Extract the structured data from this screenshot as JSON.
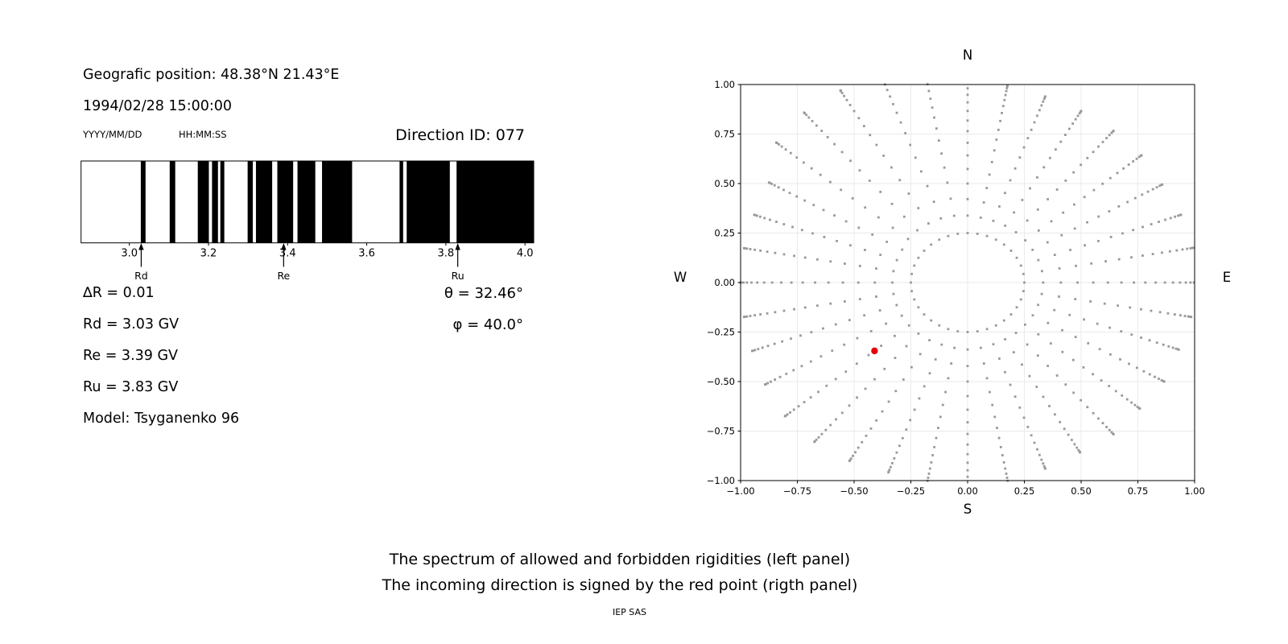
{
  "info": {
    "position": "Geografic position: 48.38°N 21.43°E",
    "datetime": "1994/02/28 15:00:00",
    "date_format": "YYYY/MM/DD",
    "time_format": "HH:MM:SS",
    "direction_id": "Direction ID: 077",
    "delta_r": "∆R = 0.01",
    "rd": "Rd = 3.03 GV",
    "re": "Re = 3.39 GV",
    "ru": "Ru = 3.83 GV",
    "model": "Model: Tsyganenko 96",
    "theta": "θ = 32.46°",
    "phi": "φ = 40.0°"
  },
  "caption": {
    "line1": "The spectrum of allowed and forbidden rigidities (left panel)",
    "line2": "The incoming direction is signed by the red point (rigth panel)",
    "footer": "IEP SAS"
  },
  "colors": {
    "allowed_band": "#000000",
    "scatter_dot": "#999999",
    "red_point": "#e8000b",
    "grid": "#e9e9e9",
    "axis": "#000000"
  },
  "chart_data": [
    {
      "type": "bar",
      "panel": "left",
      "encoding": "black = allowed rigidity, white = forbidden rigidity",
      "xlim": [
        2.878,
        4.022
      ],
      "xticks": [
        "3.0",
        "3.2",
        "3.4",
        "3.6",
        "3.8",
        "4.0"
      ],
      "xtick_values": [
        3.0,
        3.2,
        3.4,
        3.6,
        3.8,
        4.0
      ],
      "delta_r_gv": 0.01,
      "allowed_bands_gv": [
        [
          3.029,
          3.041
        ],
        [
          3.102,
          3.116
        ],
        [
          3.173,
          3.201
        ],
        [
          3.209,
          3.224
        ],
        [
          3.23,
          3.24
        ],
        [
          3.299,
          3.312
        ],
        [
          3.32,
          3.361
        ],
        [
          3.374,
          3.414
        ],
        [
          3.425,
          3.47
        ],
        [
          3.487,
          3.563
        ],
        [
          3.683,
          3.692
        ],
        [
          3.701,
          3.81
        ],
        [
          3.827,
          4.022
        ]
      ],
      "arrows": [
        {
          "label": "Rd",
          "rigidity": 3.03
        },
        {
          "label": "Re",
          "rigidity": 3.39
        },
        {
          "label": "Ru",
          "rigidity": 3.83
        }
      ]
    },
    {
      "type": "scatter",
      "panel": "right",
      "xlim": [
        -1,
        1
      ],
      "ylim": [
        -1,
        1
      ],
      "xticks": [
        "−1.00",
        "−0.75",
        "−0.50",
        "−0.25",
        "0.00",
        "0.25",
        "0.50",
        "0.75",
        "1.00"
      ],
      "xtick_values": [
        -1,
        -0.75,
        -0.5,
        -0.25,
        0,
        0.25,
        0.5,
        0.75,
        1
      ],
      "yticks": [
        "1.00",
        "0.75",
        "0.50",
        "0.25",
        "0.00",
        "−0.25",
        "−0.50",
        "−0.75",
        "−1.00"
      ],
      "ytick_values": [
        1,
        0.75,
        0.5,
        0.25,
        0,
        -0.25,
        -0.5,
        -0.75,
        -1
      ],
      "grid": true,
      "compass": {
        "top": "N",
        "bottom": "S",
        "left": "W",
        "right": "E"
      },
      "rays": {
        "count": 36,
        "angle_step_deg": 10,
        "inner_radius": 0.25,
        "dots_per_ray": 18,
        "bunch_exponent": 1.9,
        "tip_radii": [
          1.01,
          1.01,
          1.0,
          0.99,
          1.0,
          1.0,
          1.0,
          1.0,
          1.01,
          1.06,
          1.1,
          1.12,
          1.12,
          1.12,
          1.1,
          1.01,
          1.0,
          1.0,
          1.0,
          1.0,
          1.01,
          1.03,
          1.05,
          1.05,
          1.04,
          1.02,
          1.03,
          1.06,
          1.03,
          1.0,
          0.99,
          1.0,
          0.99,
          1.0,
          0.99,
          1.0
        ]
      },
      "red_point": {
        "x": -0.41,
        "y": -0.345
      }
    }
  ]
}
